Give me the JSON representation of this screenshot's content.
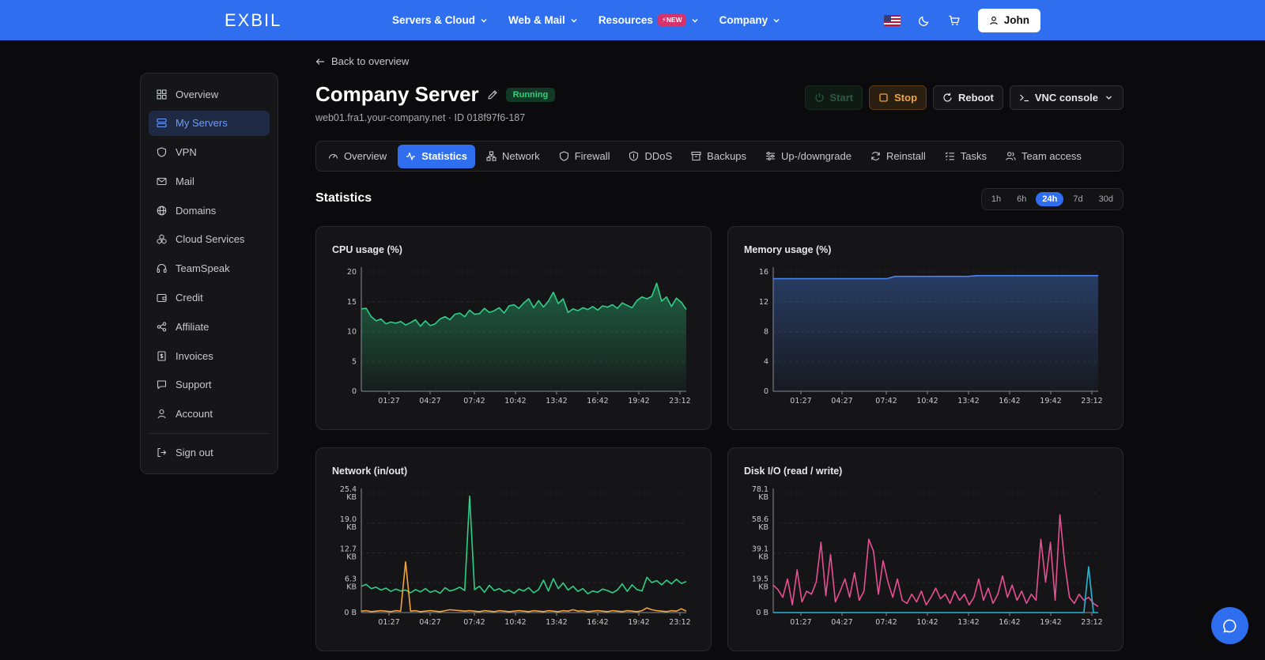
{
  "brand": "EXBIL",
  "nav": {
    "items": [
      {
        "label": "Servers & Cloud"
      },
      {
        "label": "Web & Mail"
      },
      {
        "label": "Resources",
        "badge": "NEW"
      },
      {
        "label": "Company"
      }
    ],
    "user": "John"
  },
  "sidebar": {
    "items": [
      {
        "label": "Overview",
        "icon": "grid-icon"
      },
      {
        "label": "My Servers",
        "icon": "server-icon",
        "active": true
      },
      {
        "label": "VPN",
        "icon": "shield-icon"
      },
      {
        "label": "Mail",
        "icon": "mail-icon"
      },
      {
        "label": "Domains",
        "icon": "globe-icon"
      },
      {
        "label": "Cloud Services",
        "icon": "cloud-services-icon"
      },
      {
        "label": "TeamSpeak",
        "icon": "headset-icon"
      },
      {
        "label": "Credit",
        "icon": "wallet-icon"
      },
      {
        "label": "Affiliate",
        "icon": "share-icon"
      },
      {
        "label": "Invoices",
        "icon": "invoice-icon"
      },
      {
        "label": "Support",
        "icon": "chat-icon"
      },
      {
        "label": "Account",
        "icon": "user-icon"
      }
    ],
    "signout": "Sign out"
  },
  "back_label": "Back to overview",
  "server": {
    "name": "Company Server",
    "status": "Running",
    "subtitle": "web01.fra1.your-company.net · ID 018f97f6-187"
  },
  "actions": {
    "start": "Start",
    "stop": "Stop",
    "reboot": "Reboot",
    "vnc": "VNC console"
  },
  "tabs": [
    {
      "label": "Overview",
      "icon": "gauge-icon"
    },
    {
      "label": "Statistics",
      "icon": "activity-icon",
      "active": true
    },
    {
      "label": "Network",
      "icon": "network-icon"
    },
    {
      "label": "Firewall",
      "icon": "shield-icon"
    },
    {
      "label": "DDoS",
      "icon": "shield-check-icon"
    },
    {
      "label": "Backups",
      "icon": "archive-icon"
    },
    {
      "label": "Up-/downgrade",
      "icon": "sliders-icon"
    },
    {
      "label": "Reinstall",
      "icon": "refresh-icon"
    },
    {
      "label": "Tasks",
      "icon": "list-check-icon"
    },
    {
      "label": "Team access",
      "icon": "users-icon"
    }
  ],
  "statistics_title": "Statistics",
  "ranges": [
    {
      "label": "1h"
    },
    {
      "label": "6h"
    },
    {
      "label": "24h",
      "active": true
    },
    {
      "label": "7d"
    },
    {
      "label": "30d"
    }
  ],
  "colors": {
    "accent": "#2f6fef",
    "cpu": "#2ecf86",
    "memory": "#4a84f0",
    "network_in": "#2ecf86",
    "network_out": "#f2a33a",
    "disk_read": "#e84f93",
    "disk_write": "#26b6d4"
  },
  "chart_data": [
    {
      "type": "area",
      "title": "CPU usage (%)",
      "x_ticks": [
        "01:27",
        "04:27",
        "07:42",
        "10:42",
        "13:42",
        "16:42",
        "19:42",
        "23:12"
      ],
      "y_ticks": [
        "0",
        "5",
        "10",
        "15",
        "20"
      ],
      "ylim": [
        0,
        20
      ],
      "series": [
        {
          "values": [
            13.8,
            13.9,
            12.5,
            11.8,
            12.1,
            11.3,
            11.6,
            11.4,
            11.7,
            11.1,
            11.5,
            12.0,
            10.9,
            11.8,
            11.0,
            11.3,
            12.1,
            12.5,
            12.0,
            12.9,
            13.1,
            12.5,
            13.6,
            12.9,
            13.0,
            13.9,
            13.2,
            13.5,
            14.0,
            13.1,
            14.3,
            14.5,
            13.9,
            14.8,
            15.5,
            14.0,
            15.2,
            14.1,
            15.1,
            16.6,
            14.7,
            15.5,
            13.2,
            13.8,
            13.5,
            14.0,
            13.7,
            14.2,
            13.6,
            14.3,
            14.1,
            14.5,
            13.9,
            14.8,
            14.4,
            14.0,
            15.2,
            15.8,
            15.5,
            15.9,
            18.1,
            15.1,
            15.8,
            14.2,
            15.6,
            14.9,
            13.7
          ]
        }
      ]
    },
    {
      "type": "area",
      "title": "Memory usage (%)",
      "x_ticks": [
        "01:27",
        "04:27",
        "07:42",
        "10:42",
        "13:42",
        "16:42",
        "19:42",
        "23:12"
      ],
      "y_ticks": [
        "0",
        "4",
        "8",
        "12",
        "16"
      ],
      "ylim": [
        0,
        16
      ],
      "series": [
        {
          "values": [
            15.1,
            15.1,
            15.1,
            15.1,
            15.1,
            15.1,
            15.1,
            15.1,
            15.1,
            15.1,
            15.1,
            15.1,
            15.1,
            15.1,
            15.1,
            15.4,
            15.4,
            15.4,
            15.4,
            15.4,
            15.4,
            15.4,
            15.4,
            15.4,
            15.4,
            15.5,
            15.5,
            15.5,
            15.5,
            15.5,
            15.5,
            15.5,
            15.5,
            15.5,
            15.5,
            15.5,
            15.5,
            15.5,
            15.5,
            15.5,
            15.5
          ]
        }
      ]
    },
    {
      "type": "line",
      "title": "Network (in/out)",
      "x_ticks": [
        "01:27",
        "04:27",
        "07:42",
        "10:42",
        "13:42",
        "16:42",
        "19:42",
        "23:12"
      ],
      "y_ticks": [
        "0 B",
        "6.3 KB",
        "12.7 KB",
        "19.0 KB",
        "25.4 KB"
      ],
      "ylim": [
        0,
        25.4
      ],
      "series": [
        {
          "values": [
            5.6,
            6.0,
            5.1,
            5.4,
            4.8,
            5.2,
            4.5,
            5.0,
            4.6,
            4.8,
            4.2,
            4.9,
            4.4,
            5.1,
            4.3,
            4.7,
            4.1,
            5.3,
            4.6,
            4.9,
            5.4,
            4.7,
            24.8,
            4.9,
            5.6,
            4.3,
            5.8,
            4.7,
            5.1,
            4.4,
            4.8,
            4.1,
            5.0,
            4.6,
            5.3,
            4.2,
            4.9,
            6.9,
            4.6,
            7.2,
            5.1,
            6.3,
            4.8,
            5.6,
            4.5,
            5.1,
            4.0,
            4.6,
            4.3,
            5.0,
            4.7,
            4.2,
            4.8,
            6.1,
            4.5,
            5.9,
            4.9,
            4.6,
            7.5,
            6.4,
            6.8,
            5.9,
            6.9,
            6.1,
            7.1,
            6.2,
            6.6
          ]
        },
        {
          "values": [
            0.3,
            0.4,
            0.2,
            0.3,
            0.4,
            0.3,
            0.2,
            0.4,
            0.3,
            10.8,
            0.3,
            0.4,
            0.2,
            0.3,
            0.4,
            0.3,
            0.2,
            0.4,
            0.6,
            0.5,
            0.4,
            0.3,
            0.4,
            0.3,
            0.2,
            0.4,
            0.3,
            0.2,
            0.4,
            0.3,
            0.2,
            0.3,
            0.4,
            0.3,
            0.2,
            0.4,
            0.3,
            0.2,
            0.4,
            0.3,
            0.2,
            0.4,
            0.3,
            0.6,
            0.3,
            0.4,
            0.2,
            0.3,
            0.4,
            0.3,
            0.2,
            0.4,
            0.3,
            0.2,
            0.4,
            0.3,
            0.2,
            0.4,
            1.0,
            0.6,
            0.4,
            0.3,
            0.2,
            0.4,
            0.3,
            0.8,
            0.3
          ]
        }
      ]
    },
    {
      "type": "line",
      "title": "Disk I/O (read / write)",
      "x_ticks": [
        "01:27",
        "04:27",
        "07:42",
        "10:42",
        "13:42",
        "16:42",
        "19:42",
        "23:12"
      ],
      "y_ticks": [
        "0 B",
        "19.5 KB",
        "39.1 KB",
        "58.6 KB",
        "78.1 KB"
      ],
      "ylim": [
        0,
        78.1
      ],
      "series": [
        {
          "values": [
            18,
            15,
            10,
            22,
            5,
            28,
            7,
            14,
            12,
            20,
            46,
            11,
            38,
            7,
            14,
            22,
            10,
            26,
            8,
            14,
            48,
            40,
            12,
            34,
            20,
            10,
            22,
            8,
            6,
            12,
            7,
            14,
            5,
            10,
            16,
            9,
            12,
            6,
            14,
            8,
            12,
            5,
            10,
            22,
            8,
            16,
            6,
            12,
            24,
            10,
            18,
            8,
            14,
            6,
            12,
            8,
            48,
            20,
            46,
            8,
            64,
            32,
            10,
            6,
            12,
            8,
            10,
            6,
            4
          ]
        },
        {
          "values": [
            0,
            0,
            0,
            0,
            0,
            0,
            0,
            0,
            0,
            0,
            0,
            0,
            0,
            0,
            0,
            0,
            0,
            0,
            0,
            0,
            0,
            0,
            0,
            0,
            0,
            0,
            0,
            0,
            0,
            0,
            0,
            0,
            0,
            0,
            0,
            0,
            0,
            0,
            0,
            0,
            0,
            0,
            0,
            0,
            0,
            0,
            0,
            0,
            0,
            0,
            0,
            0,
            0,
            0,
            0,
            0,
            0,
            0,
            0,
            0,
            0,
            0,
            0,
            0,
            0,
            0,
            30,
            0,
            0
          ]
        }
      ]
    }
  ]
}
